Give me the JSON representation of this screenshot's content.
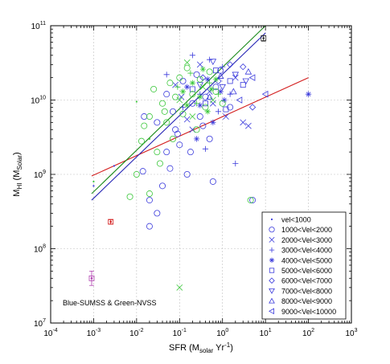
{
  "chart_data": {
    "type": "scatter",
    "xscale": "log",
    "yscale": "log",
    "xlim": [
      0.0001,
      1000
    ],
    "ylim": [
      10000000,
      100000000000
    ],
    "grid": true,
    "legend_position": "bottom-right",
    "colors": {
      "sumss": "#3b3bdc",
      "nvss": "#3cc83c",
      "fit_red": "#d42020",
      "fit_green": "#1a8a1a",
      "fit_blue": "#2424b4",
      "grid": "#c0c0c0"
    },
    "xlabel": "SFR (M",
    "xlabel_sub": "solar",
    "xlabel_tail": " Yr",
    "xlabel_sup": "-1",
    "xlabel_end": ")",
    "ylabel": "M",
    "ylabel_sub1": "HI",
    "ylabel_mid": " (M",
    "ylabel_sub2": "Solar",
    "ylabel_end": ")",
    "xticks": [
      {
        "value": 0.0001,
        "base": "10",
        "exp": "-4"
      },
      {
        "value": 0.001,
        "base": "10",
        "exp": "-3"
      },
      {
        "value": 0.01,
        "base": "10",
        "exp": "-2"
      },
      {
        "value": 0.1,
        "base": "10",
        "exp": "-1"
      },
      {
        "value": 1,
        "base": "10",
        "exp": "0"
      },
      {
        "value": 10,
        "base": "10",
        "exp": "1"
      },
      {
        "value": 100,
        "base": "10",
        "exp": "2"
      },
      {
        "value": 1000,
        "base": "10",
        "exp": "3"
      }
    ],
    "yticks": [
      {
        "value": 10000000,
        "base": "10",
        "exp": "7"
      },
      {
        "value": 100000000,
        "base": "10",
        "exp": "8"
      },
      {
        "value": 1000000000,
        "base": "10",
        "exp": "9"
      },
      {
        "value": 10000000000,
        "base": "10",
        "exp": "10"
      },
      {
        "value": 100000000000,
        "base": "10",
        "exp": "11"
      }
    ],
    "annotation": "Blue-SUMSS & Green-NVSS",
    "legend": [
      {
        "label": "vel<1000",
        "marker": "dot"
      },
      {
        "label": "1000<Vel<2000",
        "marker": "circle"
      },
      {
        "label": "2000<Vel<3000",
        "marker": "x"
      },
      {
        "label": "3000<Vel<4000",
        "marker": "plus"
      },
      {
        "label": "4000<Vel<5000",
        "marker": "star"
      },
      {
        "label": "5000<Vel<6000",
        "marker": "square"
      },
      {
        "label": "6000<Vel<7000",
        "marker": "diamond"
      },
      {
        "label": "7000<Vel<8000",
        "marker": "tri-down"
      },
      {
        "label": "8000<Vel<9000",
        "marker": "tri-up"
      },
      {
        "label": "9000<Vel<10000",
        "marker": "tri-left"
      }
    ],
    "fit_lines": [
      {
        "color": "red",
        "x": [
          0.0009,
          100
        ],
        "y": [
          950000000,
          20000000000
        ]
      },
      {
        "color": "green",
        "x": [
          0.0009,
          10
        ],
        "y": [
          550000000,
          100000000000
        ]
      },
      {
        "color": "blue",
        "x": [
          0.0009,
          10
        ],
        "y": [
          450000000,
          80000000000
        ]
      }
    ],
    "error_points": [
      {
        "x": 0.0009,
        "y": 40000000,
        "ylow": 32000000,
        "yhigh": 50000000,
        "color": "#b040b0"
      },
      {
        "x": 0.0025,
        "y": 230000000,
        "ylow": 215000000,
        "yhigh": 245000000,
        "color": "#d42020"
      },
      {
        "x": 9,
        "y": 68000000000,
        "ylow": 62000000000,
        "yhigh": 74000000000,
        "color": "#333333"
      }
    ],
    "series": [
      {
        "name": "SUMSS",
        "color": "sumss",
        "points": [
          {
            "x": 0.001,
            "y": 700000000,
            "m": "dot"
          },
          {
            "x": 0.003,
            "y": 1300000000,
            "m": "dot"
          },
          {
            "x": 0.014,
            "y": 1100000000,
            "m": "circle"
          },
          {
            "x": 0.02,
            "y": 200000000,
            "m": "circle"
          },
          {
            "x": 0.03,
            "y": 300000000,
            "m": "circle"
          },
          {
            "x": 0.02,
            "y": 450000000,
            "m": "circle"
          },
          {
            "x": 0.04,
            "y": 700000000,
            "m": "circle"
          },
          {
            "x": 0.06,
            "y": 1200000000,
            "m": "circle"
          },
          {
            "x": 0.015,
            "y": 6000000000,
            "m": "circle"
          },
          {
            "x": 0.03,
            "y": 5000000000,
            "m": "circle"
          },
          {
            "x": 0.05,
            "y": 12000000000,
            "m": "circle"
          },
          {
            "x": 0.08,
            "y": 4000000000,
            "m": "circle"
          },
          {
            "x": 0.1,
            "y": 2500000000,
            "m": "circle"
          },
          {
            "x": 0.15,
            "y": 1000000000,
            "m": "circle"
          },
          {
            "x": 0.2,
            "y": 9000000000,
            "m": "circle"
          },
          {
            "x": 0.3,
            "y": 6000000000,
            "m": "circle"
          },
          {
            "x": 0.4,
            "y": 11000000000,
            "m": "circle"
          },
          {
            "x": 0.6,
            "y": 800000000,
            "m": "circle"
          },
          {
            "x": 0.12,
            "y": 18000000000,
            "m": "circle"
          },
          {
            "x": 0.25,
            "y": 22000000000,
            "m": "circle"
          },
          {
            "x": 0.7,
            "y": 15000000000,
            "m": "circle"
          },
          {
            "x": 1.5,
            "y": 8000000000,
            "m": "circle"
          },
          {
            "x": 5,
            "y": 450000000,
            "m": "circle"
          },
          {
            "x": 0.05,
            "y": 2000000000,
            "m": "circle"
          },
          {
            "x": 0.09,
            "y": 3500000000,
            "m": "circle"
          },
          {
            "x": 0.5,
            "y": 3000000000,
            "m": "circle"
          },
          {
            "x": 0.18,
            "y": 2000000000,
            "m": "circle"
          },
          {
            "x": 0.9,
            "y": 25000000000,
            "m": "circle"
          },
          {
            "x": 0.35,
            "y": 4500000000,
            "m": "circle"
          },
          {
            "x": 0.07,
            "y": 7000000000,
            "m": "circle"
          },
          {
            "x": 0.11,
            "y": 11000000000,
            "m": "x"
          },
          {
            "x": 0.2,
            "y": 4000000000,
            "m": "x"
          },
          {
            "x": 0.5,
            "y": 13000000000,
            "m": "x"
          },
          {
            "x": 1.2,
            "y": 6000000000,
            "m": "x"
          },
          {
            "x": 3,
            "y": 5000000000,
            "m": "x"
          },
          {
            "x": 4,
            "y": 4500000000,
            "m": "x"
          },
          {
            "x": 0.08,
            "y": 16000000000,
            "m": "x"
          },
          {
            "x": 0.3,
            "y": 30000000000,
            "m": "x"
          },
          {
            "x": 2,
            "y": 20000000000,
            "m": "x"
          },
          {
            "x": 0.6,
            "y": 9000000000,
            "m": "x"
          },
          {
            "x": 0.15,
            "y": 5500000000,
            "m": "x"
          },
          {
            "x": 0.2,
            "y": 40000000000,
            "m": "plus"
          },
          {
            "x": 0.5,
            "y": 35000000000,
            "m": "plus"
          },
          {
            "x": 1,
            "y": 28000000000,
            "m": "plus"
          },
          {
            "x": 2,
            "y": 1400000000,
            "m": "plus"
          },
          {
            "x": 0.3,
            "y": 12000000000,
            "m": "plus"
          },
          {
            "x": 0.8,
            "y": 7000000000,
            "m": "plus"
          },
          {
            "x": 0.12,
            "y": 8000000000,
            "m": "plus"
          },
          {
            "x": 1.5,
            "y": 12000000000,
            "m": "plus"
          },
          {
            "x": 0.05,
            "y": 22000000000,
            "m": "plus"
          },
          {
            "x": 0.4,
            "y": 2200000000,
            "m": "plus"
          },
          {
            "x": 0.3,
            "y": 8500000000,
            "m": "star"
          },
          {
            "x": 0.6,
            "y": 5000000000,
            "m": "star"
          },
          {
            "x": 0.15,
            "y": 15000000000,
            "m": "star"
          },
          {
            "x": 1.1,
            "y": 10000000000,
            "m": "star"
          },
          {
            "x": 0.45,
            "y": 19000000000,
            "m": "star"
          },
          {
            "x": 100,
            "y": 12000000000,
            "m": "star"
          },
          {
            "x": 0.25,
            "y": 3000000000,
            "m": "star"
          },
          {
            "x": 0.9,
            "y": 13000000000,
            "m": "star"
          },
          {
            "x": 0.7,
            "y": 25000000000,
            "m": "square"
          },
          {
            "x": 1.5,
            "y": 18000000000,
            "m": "square"
          },
          {
            "x": 0.4,
            "y": 9000000000,
            "m": "square"
          },
          {
            "x": 3,
            "y": 16000000000,
            "m": "square"
          },
          {
            "x": 0.2,
            "y": 14000000000,
            "m": "square"
          },
          {
            "x": 1.2,
            "y": 7500000000,
            "m": "square"
          },
          {
            "x": 1.5,
            "y": 30000000000,
            "m": "diamond"
          },
          {
            "x": 3,
            "y": 28000000000,
            "m": "diamond"
          },
          {
            "x": 0.8,
            "y": 18000000000,
            "m": "diamond"
          },
          {
            "x": 5,
            "y": 8000000000,
            "m": "diamond"
          },
          {
            "x": 0.35,
            "y": 20000000000,
            "m": "diamond"
          },
          {
            "x": 2,
            "y": 22000000000,
            "m": "tri-down"
          },
          {
            "x": 1,
            "y": 15000000000,
            "m": "tri-down"
          },
          {
            "x": 0.6,
            "y": 33000000000,
            "m": "tri-down"
          },
          {
            "x": 3.5,
            "y": 18000000000,
            "m": "tri-down"
          },
          {
            "x": 0.3,
            "y": 16000000000,
            "m": "tri-down"
          },
          {
            "x": 1.8,
            "y": 13000000000,
            "m": "tri-up"
          },
          {
            "x": 4,
            "y": 24000000000,
            "m": "tri-up"
          },
          {
            "x": 0.9,
            "y": 21000000000,
            "m": "tri-up"
          },
          {
            "x": 0.5,
            "y": 11000000000,
            "m": "tri-up"
          },
          {
            "x": 10,
            "y": 12000000000,
            "m": "tri-left"
          },
          {
            "x": 5,
            "y": 20000000000,
            "m": "tri-left"
          },
          {
            "x": 2.5,
            "y": 10000000000,
            "m": "tri-left"
          }
        ]
      },
      {
        "name": "NVSS",
        "color": "nvss",
        "points": [
          {
            "x": 0.01,
            "y": 9500000000,
            "m": "dot"
          },
          {
            "x": 0.02,
            "y": 3000000000,
            "m": "dot"
          },
          {
            "x": 0.001,
            "y": 800000000,
            "m": "dot"
          },
          {
            "x": 0.007,
            "y": 500000000,
            "m": "circle"
          },
          {
            "x": 0.01,
            "y": 1000000000,
            "m": "circle"
          },
          {
            "x": 0.013,
            "y": 2800000000,
            "m": "circle"
          },
          {
            "x": 0.015,
            "y": 4500000000,
            "m": "circle"
          },
          {
            "x": 0.02,
            "y": 550000000,
            "m": "circle"
          },
          {
            "x": 0.02,
            "y": 6000000000,
            "m": "circle"
          },
          {
            "x": 0.025,
            "y": 14000000000,
            "m": "circle"
          },
          {
            "x": 0.03,
            "y": 2000000000,
            "m": "circle"
          },
          {
            "x": 0.04,
            "y": 9000000000,
            "m": "circle"
          },
          {
            "x": 0.05,
            "y": 5000000000,
            "m": "circle"
          },
          {
            "x": 0.06,
            "y": 17000000000,
            "m": "circle"
          },
          {
            "x": 0.07,
            "y": 3000000000,
            "m": "circle"
          },
          {
            "x": 0.08,
            "y": 11000000000,
            "m": "circle"
          },
          {
            "x": 0.1,
            "y": 20000000000,
            "m": "circle"
          },
          {
            "x": 0.12,
            "y": 6500000000,
            "m": "circle"
          },
          {
            "x": 0.15,
            "y": 27000000000,
            "m": "circle"
          },
          {
            "x": 0.2,
            "y": 12000000000,
            "m": "circle"
          },
          {
            "x": 0.25,
            "y": 4000000000,
            "m": "circle"
          },
          {
            "x": 0.3,
            "y": 19000000000,
            "m": "circle"
          },
          {
            "x": 0.4,
            "y": 8000000000,
            "m": "circle"
          },
          {
            "x": 0.5,
            "y": 24000000000,
            "m": "circle"
          },
          {
            "x": 0.7,
            "y": 13000000000,
            "m": "circle"
          },
          {
            "x": 1,
            "y": 9000000000,
            "m": "circle"
          },
          {
            "x": 4.5,
            "y": 450000000,
            "m": "circle"
          },
          {
            "x": 0.035,
            "y": 1400000000,
            "m": "circle"
          },
          {
            "x": 0.045,
            "y": 7000000000,
            "m": "circle"
          },
          {
            "x": 0.1,
            "y": 10000000000,
            "m": "x"
          },
          {
            "x": 0.2,
            "y": 6000000000,
            "m": "x"
          },
          {
            "x": 0.35,
            "y": 15000000000,
            "m": "x"
          },
          {
            "x": 0.6,
            "y": 10000000000,
            "m": "x"
          },
          {
            "x": 0.15,
            "y": 32000000000,
            "m": "x"
          },
          {
            "x": 0.1,
            "y": 30000000,
            "m": "x"
          },
          {
            "x": 0.09,
            "y": 15000000000,
            "m": "plus"
          },
          {
            "x": 0.25,
            "y": 9000000000,
            "m": "plus"
          },
          {
            "x": 0.5,
            "y": 17000000000,
            "m": "plus"
          },
          {
            "x": 0.18,
            "y": 23000000000,
            "m": "plus"
          },
          {
            "x": 0.8,
            "y": 12000000000,
            "m": "plus"
          },
          {
            "x": 0.12,
            "y": 13000000000,
            "m": "star"
          },
          {
            "x": 0.3,
            "y": 11000000000,
            "m": "star"
          },
          {
            "x": 0.45,
            "y": 7000000000,
            "m": "star"
          },
          {
            "x": 0.2,
            "y": 17000000000,
            "m": "star"
          },
          {
            "x": 0.7,
            "y": 19000000000,
            "m": "star"
          },
          {
            "x": 0.15,
            "y": 8500000000,
            "m": "star"
          },
          {
            "x": 0.55,
            "y": 14000000000,
            "m": "star"
          },
          {
            "x": 0.35,
            "y": 26000000000,
            "m": "star"
          }
        ]
      }
    ]
  }
}
